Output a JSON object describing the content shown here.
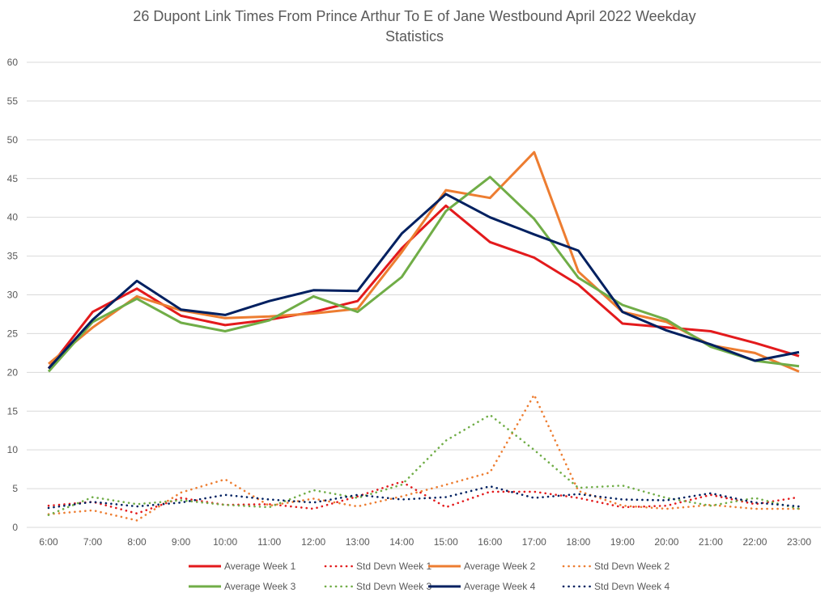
{
  "chart_data": {
    "type": "line",
    "title_line1": "26 Dupont Link Times From Prince Arthur To E of Jane Westbound April 2022 Weekday",
    "title_line2": "Statistics",
    "xlabel": "",
    "ylabel": "",
    "ylim": [
      0,
      60
    ],
    "yticks": [
      0,
      5,
      10,
      15,
      20,
      25,
      30,
      35,
      40,
      45,
      50,
      55,
      60
    ],
    "grid": true,
    "legend_position": "bottom",
    "categories": [
      "6:00",
      "7:00",
      "8:00",
      "9:00",
      "10:00",
      "11:00",
      "12:00",
      "13:00",
      "14:00",
      "15:00",
      "16:00",
      "17:00",
      "18:00",
      "19:00",
      "20:00",
      "21:00",
      "22:00",
      "23:00"
    ],
    "series": [
      {
        "name": "Average Week 1",
        "color": "#e31a1c",
        "style": "solid",
        "values": [
          20.5,
          27.8,
          30.8,
          27.3,
          26.1,
          26.8,
          27.8,
          29.2,
          36.0,
          41.5,
          36.8,
          34.8,
          31.3,
          26.3,
          25.8,
          25.3,
          23.8,
          22.1
        ]
      },
      {
        "name": "Std Devn Week 1",
        "color": "#e31a1c",
        "style": "dotted",
        "values": [
          2.8,
          3.3,
          1.8,
          3.8,
          2.9,
          3.0,
          2.4,
          4.0,
          5.9,
          2.6,
          4.6,
          4.6,
          3.8,
          2.6,
          2.8,
          4.2,
          3.0,
          3.9
        ]
      },
      {
        "name": "Average Week 2",
        "color": "#ed7d31",
        "style": "solid",
        "values": [
          21.1,
          25.8,
          29.8,
          28.0,
          27.0,
          27.2,
          27.6,
          28.2,
          35.5,
          43.5,
          42.5,
          48.4,
          33.0,
          27.8,
          26.5,
          23.5,
          22.5,
          20.1
        ]
      },
      {
        "name": "Std Devn Week 2",
        "color": "#ed7d31",
        "style": "dotted",
        "values": [
          1.7,
          2.2,
          0.9,
          4.5,
          6.2,
          2.8,
          3.7,
          2.7,
          4.0,
          5.5,
          7.1,
          17.1,
          4.7,
          2.8,
          2.4,
          2.9,
          2.4,
          2.4
        ]
      },
      {
        "name": "Average Week 3",
        "color": "#70ad47",
        "style": "solid",
        "values": [
          20.1,
          26.5,
          29.5,
          26.4,
          25.3,
          26.7,
          29.8,
          27.8,
          32.3,
          40.8,
          45.2,
          39.8,
          32.2,
          28.7,
          26.8,
          23.3,
          21.5,
          20.8
        ]
      },
      {
        "name": "Std Devn Week 3",
        "color": "#70ad47",
        "style": "dotted",
        "values": [
          1.6,
          3.9,
          3.0,
          3.5,
          2.9,
          2.6,
          4.8,
          3.8,
          5.5,
          11.2,
          14.5,
          10.0,
          5.1,
          5.4,
          3.8,
          2.8,
          3.8,
          2.4
        ]
      },
      {
        "name": "Average Week 4",
        "color": "#002060",
        "style": "solid",
        "values": [
          20.5,
          26.8,
          31.8,
          28.1,
          27.4,
          29.2,
          30.6,
          30.5,
          37.9,
          43.0,
          40.0,
          37.8,
          35.7,
          27.8,
          25.4,
          23.6,
          21.5,
          22.6
        ]
      },
      {
        "name": "Std Devn Week 4",
        "color": "#002060",
        "style": "dotted",
        "values": [
          2.5,
          3.3,
          2.7,
          3.2,
          4.2,
          3.6,
          3.2,
          4.2,
          3.6,
          3.9,
          5.3,
          3.8,
          4.3,
          3.6,
          3.5,
          4.4,
          3.2,
          2.7
        ]
      }
    ]
  }
}
